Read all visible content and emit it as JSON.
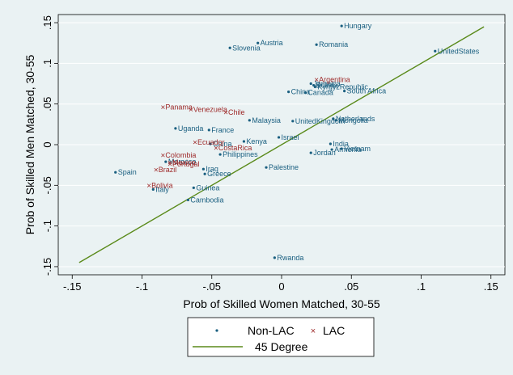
{
  "chart_data": {
    "type": "scatter",
    "xlabel": "Prob of Skilled Women Matched, 30-55",
    "ylabel": "Prob of Skilled Men Matched, 30-55",
    "xlim": [
      -0.16,
      0.16
    ],
    "ylim": [
      -0.16,
      0.16
    ],
    "xticks": [
      -0.15,
      -0.1,
      -0.05,
      0,
      0.05,
      0.1,
      0.15
    ],
    "xtick_labels": [
      "-.15",
      "-.1",
      "-.05",
      "0",
      ".05",
      ".1",
      ".15"
    ],
    "yticks": [
      -0.15,
      -0.1,
      -0.05,
      0,
      0.05,
      0.1,
      0.15
    ],
    "ytick_labels": [
      "-.15",
      "-.1",
      "-.05",
      "0",
      ".05",
      ".1",
      ".15"
    ],
    "grid": true,
    "legend_position": "bottom",
    "legend": [
      "Non-LAC",
      "LAC",
      "45 Degree"
    ],
    "colors": {
      "non_lac": "#1a5f80",
      "lac": "#9e2a2a",
      "line": "#5a8a1a"
    },
    "reference_line": {
      "name": "45 Degree",
      "x": [
        -0.145,
        0.145
      ],
      "y": [
        -0.145,
        0.145
      ]
    },
    "series": [
      {
        "name": "Non-LAC",
        "marker": "dot",
        "points": [
          {
            "label": "Hungary",
            "x": 0.043,
            "y": 0.146
          },
          {
            "label": "Austria",
            "x": -0.017,
            "y": 0.125
          },
          {
            "label": "Slovenia",
            "x": -0.037,
            "y": 0.119
          },
          {
            "label": "Romania",
            "x": 0.025,
            "y": 0.123
          },
          {
            "label": "UnitedStates",
            "x": 0.11,
            "y": 0.115
          },
          {
            "label": "Jamaica",
            "x": 0.021,
            "y": 0.075
          },
          {
            "label": "Bolivia",
            "x": 0.023,
            "y": 0.073
          },
          {
            "label": "KyrgyzRepublic",
            "x": 0.024,
            "y": 0.071
          },
          {
            "label": "South Africa",
            "x": 0.045,
            "y": 0.066
          },
          {
            "label": "China",
            "x": 0.005,
            "y": 0.065
          },
          {
            "label": "Canada",
            "x": 0.017,
            "y": 0.064
          },
          {
            "label": "Malaysia",
            "x": -0.023,
            "y": 0.03
          },
          {
            "label": "UnitedKingdom",
            "x": 0.008,
            "y": 0.029
          },
          {
            "label": "Netherlands",
            "x": 0.037,
            "y": 0.032
          },
          {
            "label": "Mongolia",
            "x": 0.039,
            "y": 0.03
          },
          {
            "label": "Uganda",
            "x": -0.076,
            "y": 0.02
          },
          {
            "label": "France",
            "x": -0.052,
            "y": 0.018
          },
          {
            "label": "Israel",
            "x": -0.002,
            "y": 0.009
          },
          {
            "label": "Kenya",
            "x": -0.027,
            "y": 0.004
          },
          {
            "label": "India",
            "x": 0.035,
            "y": 0.001
          },
          {
            "label": "Armenia",
            "x": 0.036,
            "y": -0.006
          },
          {
            "label": "Vietnam",
            "x": 0.043,
            "y": -0.005
          },
          {
            "label": "Jordan",
            "x": 0.021,
            "y": -0.01
          },
          {
            "label": "Philippines",
            "x": -0.044,
            "y": -0.012
          },
          {
            "label": "Palestine",
            "x": -0.011,
            "y": -0.028
          },
          {
            "label": "Spain",
            "x": -0.119,
            "y": -0.034
          },
          {
            "label": "Iraq",
            "x": -0.056,
            "y": -0.03
          },
          {
            "label": "Greece",
            "x": -0.055,
            "y": -0.036
          },
          {
            "label": "Italy",
            "x": -0.092,
            "y": -0.055
          },
          {
            "label": "Guinea",
            "x": -0.063,
            "y": -0.053
          },
          {
            "label": "Cambodia",
            "x": -0.067,
            "y": -0.068
          },
          {
            "label": "Rwanda",
            "x": -0.005,
            "y": -0.139
          },
          {
            "label": "Morocco",
            "x": -0.083,
            "y": -0.021
          },
          {
            "label": "China",
            "x": -0.051,
            "y": 0.001
          }
        ]
      },
      {
        "name": "LAC",
        "marker": "x",
        "points": [
          {
            "label": "Argentina",
            "x": 0.025,
            "y": 0.08
          },
          {
            "label": "Panama",
            "x": -0.085,
            "y": 0.046
          },
          {
            "label": "Venezuela",
            "x": -0.065,
            "y": 0.043
          },
          {
            "label": "Chile",
            "x": -0.04,
            "y": 0.04
          },
          {
            "label": "Ecuador",
            "x": -0.062,
            "y": 0.003
          },
          {
            "label": "CostaRica",
            "x": -0.047,
            "y": -0.004
          },
          {
            "label": "Colombia",
            "x": -0.085,
            "y": -0.013
          },
          {
            "label": "Mexico",
            "x": -0.08,
            "y": -0.022
          },
          {
            "label": "Portugal",
            "x": -0.08,
            "y": -0.024
          },
          {
            "label": "Brazil",
            "x": -0.09,
            "y": -0.031
          },
          {
            "label": "Bolivia",
            "x": -0.095,
            "y": -0.05
          }
        ]
      }
    ]
  }
}
